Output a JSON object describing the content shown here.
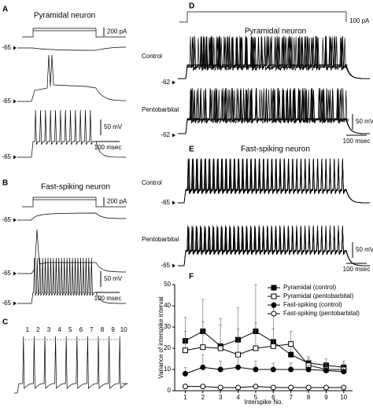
{
  "panels": {
    "A": {
      "letter": "A",
      "title": "Pyramidal neuron",
      "stim_scale": "200 pA",
      "rest": [
        -65,
        -65,
        -65
      ],
      "v_scale": "50 mV",
      "t_scale": "100 msec"
    },
    "B": {
      "letter": "B",
      "title": "Fast-spiking neuron",
      "stim_scale": "200 pA",
      "rest": [
        -65,
        -65,
        -65
      ],
      "v_scale": "50 mV",
      "t_scale": "100 msec"
    },
    "C": {
      "letter": "C",
      "spike_numbers": [
        1,
        2,
        3,
        4,
        5,
        6,
        7,
        8,
        9,
        10
      ]
    },
    "D": {
      "letter": "D",
      "title": "Pyramidal neuron",
      "stim_scale": "100 pA",
      "conditions": [
        "Control",
        "Pentobarbital"
      ],
      "rest": [
        -62,
        -62
      ],
      "v_scale": "50 mV",
      "t_scale": "100 msec"
    },
    "E": {
      "letter": "E",
      "title": "Fast-spiking neuron",
      "conditions": [
        "Control",
        "Pentobarbital"
      ],
      "rest": [
        -65,
        -65
      ],
      "v_scale": "50 mV",
      "t_scale": "100 msec"
    }
  },
  "chart_data": {
    "type": "line",
    "letter": "F",
    "ylabel": "Variance of interspike interval",
    "xlabel": "Interspike No.",
    "x": [
      1,
      2,
      3,
      4,
      5,
      6,
      7,
      8,
      9,
      10
    ],
    "xlim": [
      0.4,
      10.5
    ],
    "xticks": [
      1,
      2,
      3,
      4,
      5,
      6,
      7,
      8,
      9,
      10
    ],
    "ylim": [
      0,
      50
    ],
    "yticks": [
      0,
      10,
      20,
      30,
      40,
      50
    ],
    "legend": "upper right",
    "series": [
      {
        "name": "Pyramidal (control)",
        "color": "#000000",
        "marker": "square",
        "filled": true,
        "values": [
          23.5,
          28,
          21,
          24,
          28,
          23,
          17,
          13,
          12,
          11
        ],
        "errors": [
          11,
          15,
          13,
          15,
          22,
          16,
          5,
          3,
          3,
          3
        ]
      },
      {
        "name": "Pyramidal (pentobarbital)",
        "color": "#000000",
        "marker": "square",
        "filled": false,
        "values": [
          19,
          20.5,
          20,
          17,
          20,
          21,
          22,
          12,
          10,
          10
        ],
        "errors": [
          9,
          12,
          11,
          12,
          12,
          8,
          6,
          3,
          3,
          3
        ]
      },
      {
        "name": "Fast-spiking (control)",
        "color": "#000000",
        "marker": "circle",
        "filled": true,
        "values": [
          8,
          11,
          10,
          11,
          10,
          10,
          10,
          10,
          9.5,
          9
        ],
        "errors": [
          3,
          6,
          4,
          5,
          4,
          3,
          3,
          2,
          2,
          2
        ]
      },
      {
        "name": "Fast-spiking (pentobarbital)",
        "color": "#000000",
        "marker": "circle",
        "filled": false,
        "values": [
          2,
          2,
          1.5,
          1.5,
          2,
          1.5,
          1.5,
          1.5,
          1.5,
          1.5
        ],
        "errors": [
          0.5,
          0.5,
          0.5,
          0.5,
          0.5,
          0.5,
          0.5,
          0.5,
          0.5,
          0.5
        ]
      }
    ]
  }
}
